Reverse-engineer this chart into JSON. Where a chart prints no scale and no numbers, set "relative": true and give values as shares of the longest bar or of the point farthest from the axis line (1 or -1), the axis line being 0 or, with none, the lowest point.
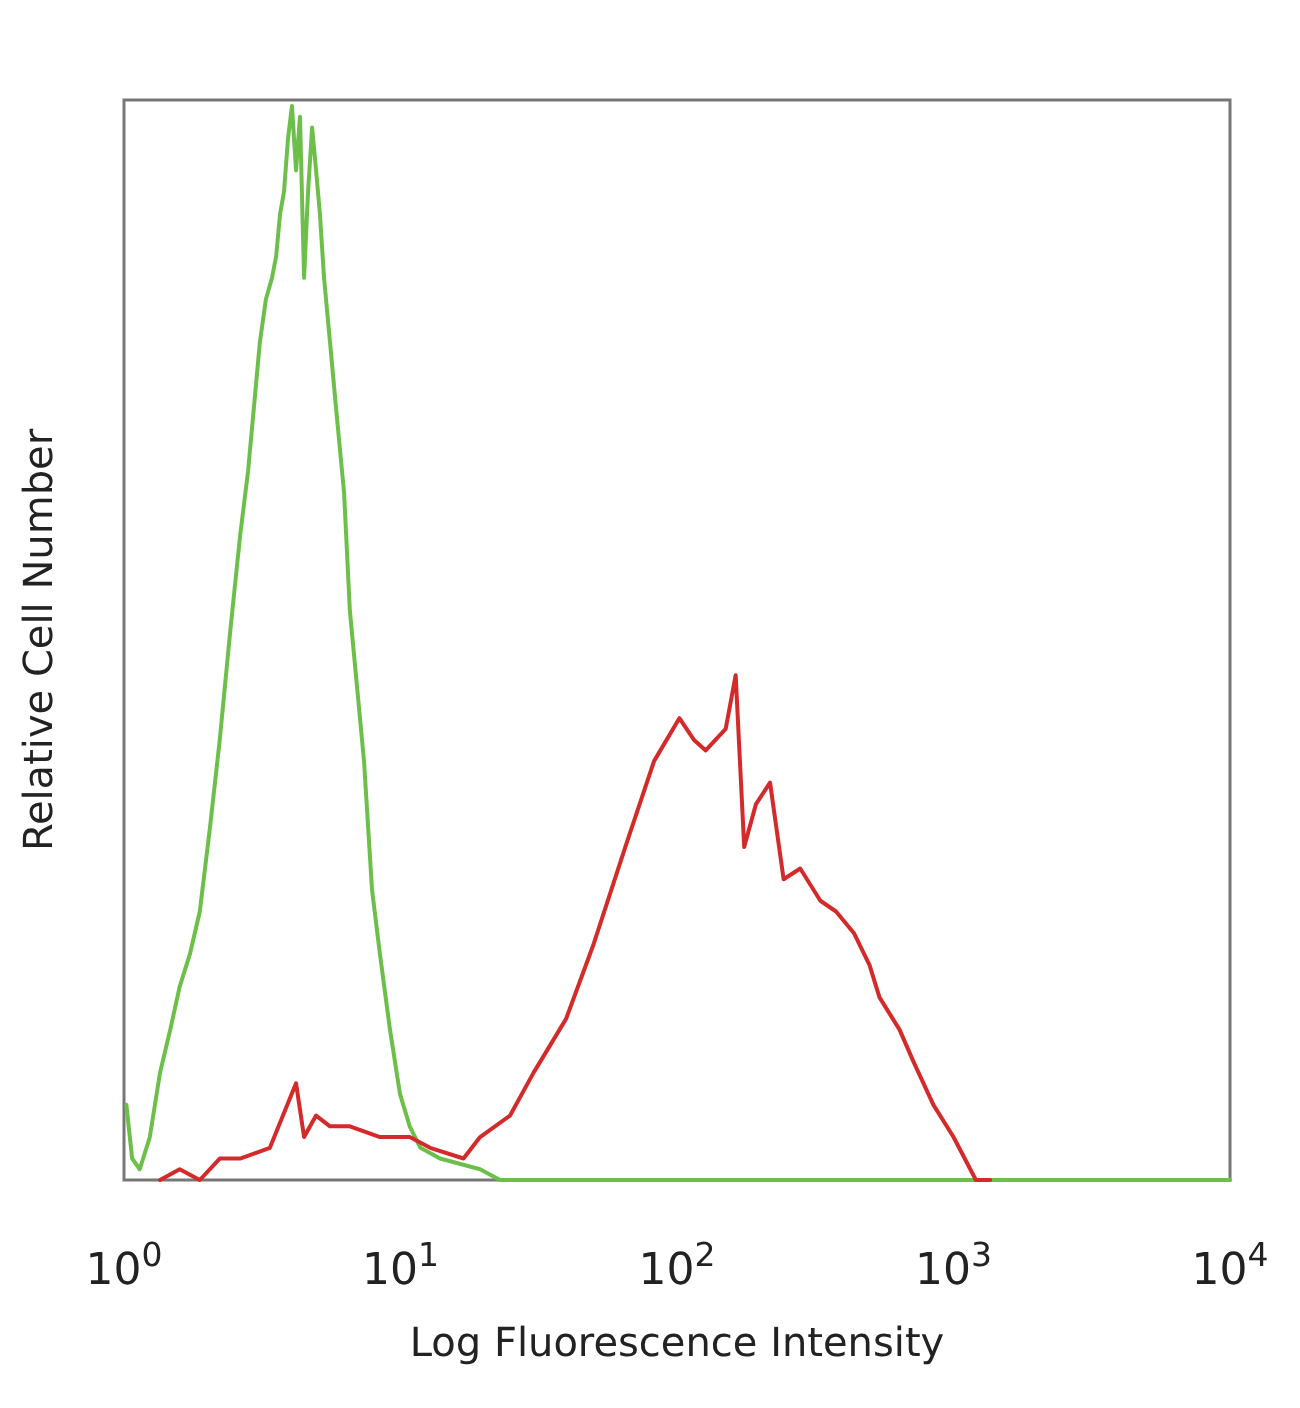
{
  "chart_data": {
    "type": "line",
    "relative": true,
    "log": "x",
    "xlabel": "Log Fluorescence Intensity",
    "ylabel": "Relative Cell Number",
    "xlim": [
      1,
      10000
    ],
    "xticks": [
      {
        "value": 1,
        "label": "10$^{0}$"
      },
      {
        "value": 10,
        "label": "10$^{1}$"
      },
      {
        "value": 100,
        "label": "10$^{2}$"
      },
      {
        "value": 1000,
        "label": "10$^{3}$"
      },
      {
        "value": 10000,
        "label": "10$^{4}$"
      }
    ],
    "grid": false,
    "marker": "none",
    "line_style": "solid",
    "series": [
      {
        "color": "#6cc04a",
        "x": [
          1.02,
          1.07,
          1.14,
          1.24,
          1.35,
          1.47,
          1.59,
          1.73,
          1.88,
          2.05,
          2.22,
          2.42,
          2.63,
          2.81,
          3.0,
          3.1,
          3.26,
          3.43,
          3.55,
          3.67,
          3.79,
          3.92,
          4.05,
          4.19,
          4.33,
          4.48,
          4.63,
          4.79,
          4.95,
          5.11,
          5.29,
          5.56,
          5.84,
          6.25,
          6.56,
          6.9,
          7.38,
          7.89,
          8.43,
          9.16,
          9.96,
          10.8,
          11.8,
          13.9,
          19.4,
          22.9,
          52.7,
          279,
          10000
        ],
        "values": [
          0.07,
          0.02,
          0.01,
          0.04,
          0.1,
          0.14,
          0.18,
          0.21,
          0.25,
          0.33,
          0.41,
          0.51,
          0.6,
          0.66,
          0.74,
          0.78,
          0.82,
          0.84,
          0.86,
          0.9,
          0.92,
          0.97,
          1,
          0.94,
          0.99,
          0.84,
          0.92,
          0.98,
          0.94,
          0.9,
          0.84,
          0.78,
          0.72,
          0.64,
          0.53,
          0.47,
          0.39,
          0.27,
          0.21,
          0.14,
          0.08,
          0.05,
          0.03,
          0.02,
          0.01,
          0,
          0,
          0,
          0
        ]
      },
      {
        "color": "#d42a2a",
        "x": [
          1.35,
          1.59,
          1.88,
          2.22,
          2.63,
          3.37,
          4.19,
          4.48,
          4.95,
          5.56,
          6.56,
          8.43,
          10.8,
          12.8,
          16.9,
          19.4,
          24.9,
          30.3,
          39.7,
          50,
          65,
          82.6,
          102,
          115,
          127,
          150,
          163,
          175,
          193,
          217,
          243,
          279,
          330,
          376,
          436,
          497,
          540,
          638,
          717,
          846,
          1000,
          1205,
          1358
        ],
        "values": [
          0,
          0.01,
          0,
          0.02,
          0.02,
          0.03,
          0.09,
          0.04,
          0.06,
          0.05,
          0.05,
          0.04,
          0.04,
          0.03,
          0.02,
          0.04,
          0.06,
          0.1,
          0.15,
          0.22,
          0.31,
          0.39,
          0.43,
          0.41,
          0.4,
          0.42,
          0.47,
          0.31,
          0.35,
          0.37,
          0.28,
          0.29,
          0.26,
          0.25,
          0.23,
          0.2,
          0.17,
          0.14,
          0.11,
          0.07,
          0.04,
          0,
          0
        ]
      }
    ]
  }
}
